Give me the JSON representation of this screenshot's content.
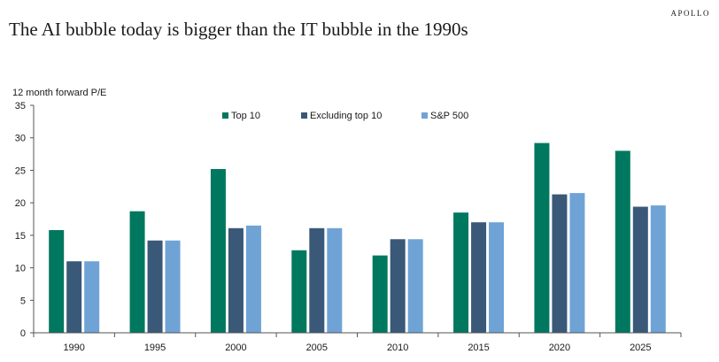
{
  "brand": "APOLLO",
  "chart_data": {
    "type": "bar",
    "title": "The AI bubble today is bigger than the IT bubble in the 1990s",
    "ylabel": "12 month forward P/E",
    "xlabel": "",
    "ylim": [
      0,
      35
    ],
    "yticks": [
      0,
      5,
      10,
      15,
      20,
      25,
      30,
      35
    ],
    "categories": [
      "1990",
      "1995",
      "2000",
      "2005",
      "2010",
      "2015",
      "2020",
      "2025"
    ],
    "legend_position": "top",
    "series": [
      {
        "name": "Top 10",
        "color": "#00785f",
        "values": [
          15.8,
          18.7,
          25.2,
          12.7,
          11.9,
          18.5,
          29.2,
          28.0
        ]
      },
      {
        "name": "Excluding top 10",
        "color": "#3a5878",
        "values": [
          11.0,
          14.2,
          16.1,
          16.1,
          14.4,
          17.0,
          21.3,
          19.4
        ]
      },
      {
        "name": "S&P 500",
        "color": "#6fa3d6",
        "values": [
          11.0,
          14.2,
          16.5,
          16.1,
          14.4,
          17.0,
          21.5,
          19.6
        ]
      }
    ]
  }
}
